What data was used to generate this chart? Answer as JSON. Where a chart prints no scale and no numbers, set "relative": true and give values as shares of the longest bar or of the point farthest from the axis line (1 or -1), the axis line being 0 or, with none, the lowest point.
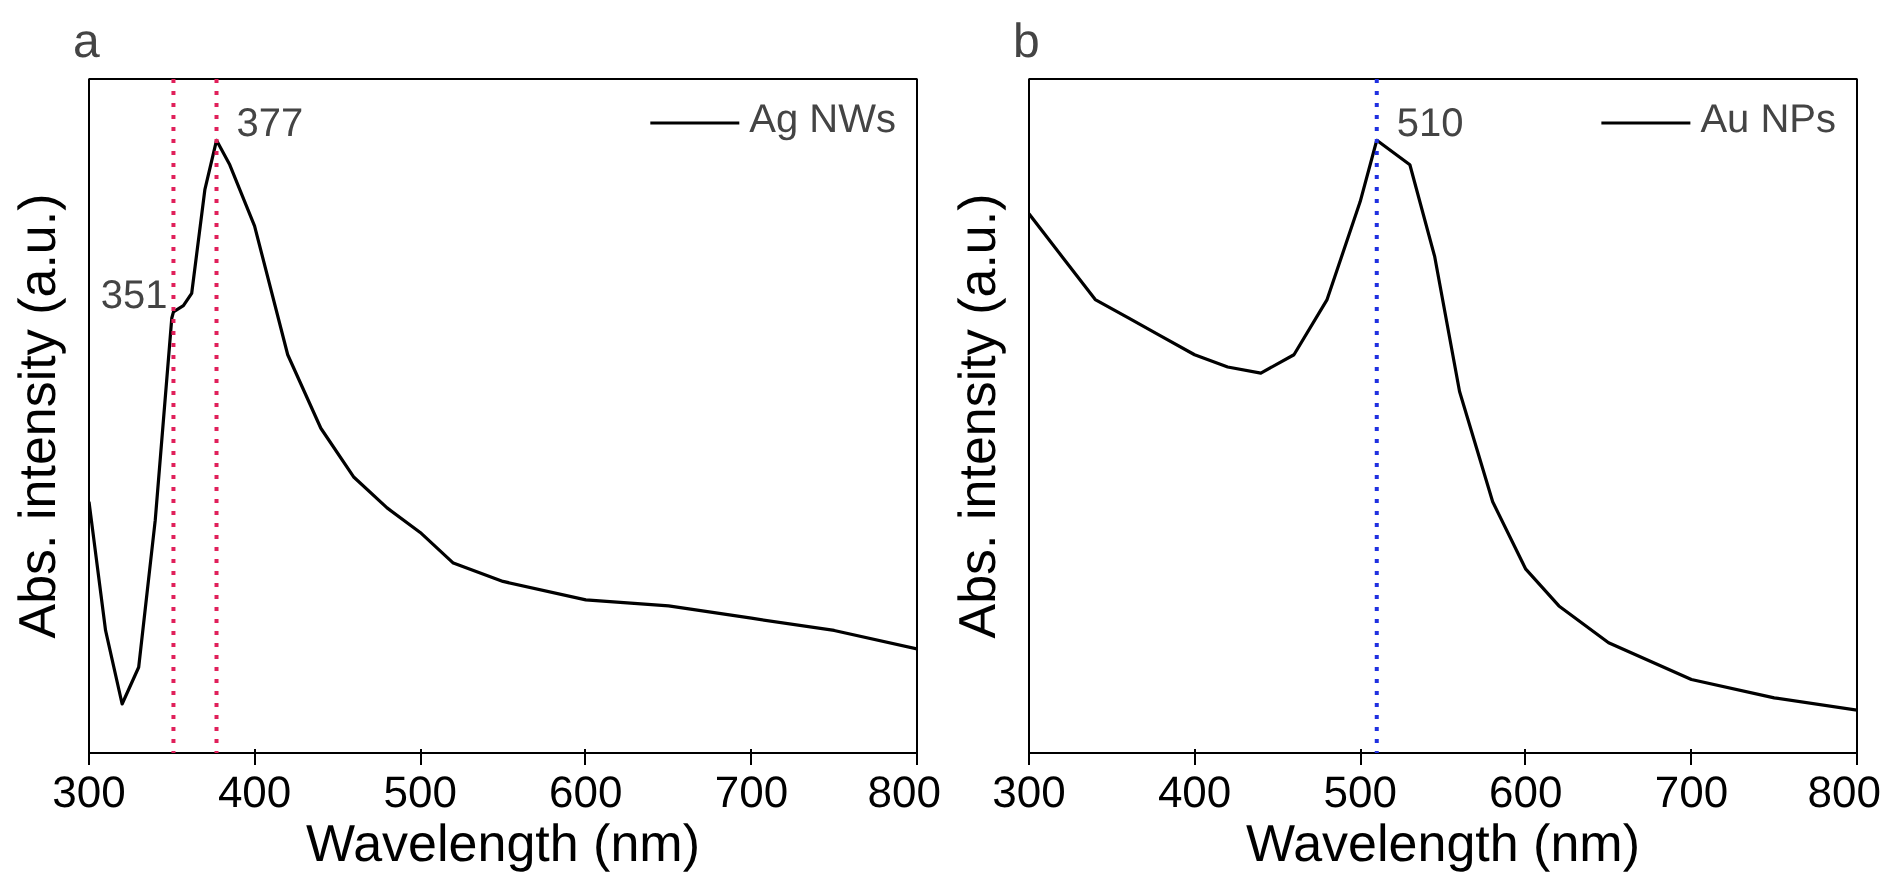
{
  "chart_data": [
    {
      "type": "line",
      "relative": true,
      "xlabel": "Wavelength (nm)",
      "ylabel": "Abs. intensity (a.u.)",
      "annotations": [
        "a"
      ],
      "xlim": [
        300,
        800
      ],
      "xticks": [
        300,
        400,
        500,
        600,
        700,
        800
      ],
      "legend": "top right",
      "grid": false,
      "series": [
        {
          "name": "Ag NWs",
          "color": "#000000",
          "x": [
            300,
            310,
            320,
            330,
            340,
            350,
            351,
            357,
            362,
            370,
            377,
            385,
            400,
            420,
            440,
            460,
            480,
            500,
            520,
            550,
            600,
            650,
            700,
            750,
            800
          ],
          "values": [
            0.41,
            0.2,
            0.08,
            0.14,
            0.38,
            0.71,
            0.72,
            0.73,
            0.75,
            0.92,
            1.0,
            0.96,
            0.86,
            0.65,
            0.53,
            0.45,
            0.4,
            0.36,
            0.31,
            0.28,
            0.25,
            0.24,
            0.22,
            0.2,
            0.17
          ]
        }
      ],
      "ref_lines": [
        {
          "axis": "x",
          "value": 351,
          "label": "351",
          "color": "#e0205a",
          "line_style": "dotted"
        },
        {
          "axis": "x",
          "value": 377,
          "label": "377",
          "color": "#e0205a",
          "line_style": "dotted"
        }
      ]
    },
    {
      "type": "line",
      "relative": true,
      "xlabel": "Wavelength (nm)",
      "ylabel": "Abs. intensity (a.u.)",
      "annotations": [
        "b"
      ],
      "xlim": [
        300,
        800
      ],
      "xticks": [
        300,
        400,
        500,
        600,
        700,
        800
      ],
      "legend": "top right",
      "grid": false,
      "series": [
        {
          "name": "Au NPs",
          "color": "#000000",
          "x": [
            300,
            320,
            340,
            360,
            380,
            400,
            420,
            440,
            460,
            480,
            500,
            510,
            530,
            545,
            560,
            580,
            600,
            620,
            650,
            700,
            750,
            800
          ],
          "values": [
            0.88,
            0.81,
            0.74,
            0.71,
            0.68,
            0.65,
            0.63,
            0.62,
            0.65,
            0.74,
            0.9,
            1.0,
            0.96,
            0.81,
            0.59,
            0.41,
            0.3,
            0.24,
            0.18,
            0.12,
            0.09,
            0.07
          ]
        }
      ],
      "ref_lines": [
        {
          "axis": "x",
          "value": 510,
          "label": "510",
          "color": "#2030e0",
          "line_style": "dotted"
        }
      ]
    }
  ]
}
